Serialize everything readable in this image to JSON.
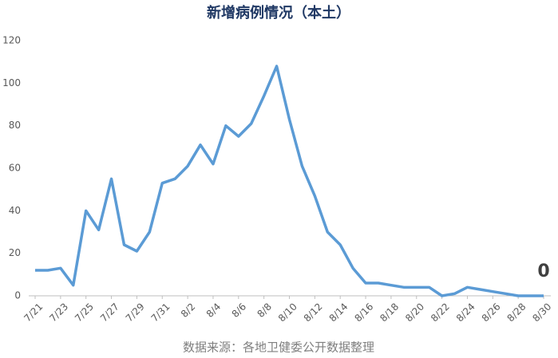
{
  "chart_data": {
    "type": "line",
    "title": "新增病例情况（本土）",
    "source": "数据来源：各地卫健委公开数据整理",
    "categories": [
      "7/21",
      null,
      "7/23",
      null,
      "7/25",
      null,
      "7/27",
      null,
      "7/29",
      null,
      "7/31",
      null,
      "8/2",
      null,
      "8/4",
      null,
      "8/6",
      null,
      "8/8",
      null,
      "8/10",
      null,
      "8/12",
      null,
      "8/14",
      null,
      "8/16",
      null,
      "8/18",
      null,
      "8/20",
      null,
      "8/22",
      null,
      "8/24",
      null,
      "8/26",
      null,
      "8/28",
      null,
      "8/30"
    ],
    "values": [
      12,
      12,
      13,
      5,
      40,
      31,
      55,
      24,
      21,
      30,
      53,
      55,
      61,
      71,
      62,
      80,
      75,
      81,
      94,
      108,
      83,
      61,
      47,
      30,
      24,
      13,
      6,
      6,
      5,
      4,
      4,
      4,
      0,
      1,
      4,
      3,
      2,
      1,
      0,
      0,
      0
    ],
    "color": "#5b9bd5",
    "ylim": [
      0,
      120
    ],
    "yticks": [
      0,
      20,
      40,
      60,
      80,
      100,
      120
    ],
    "grid": false
  }
}
